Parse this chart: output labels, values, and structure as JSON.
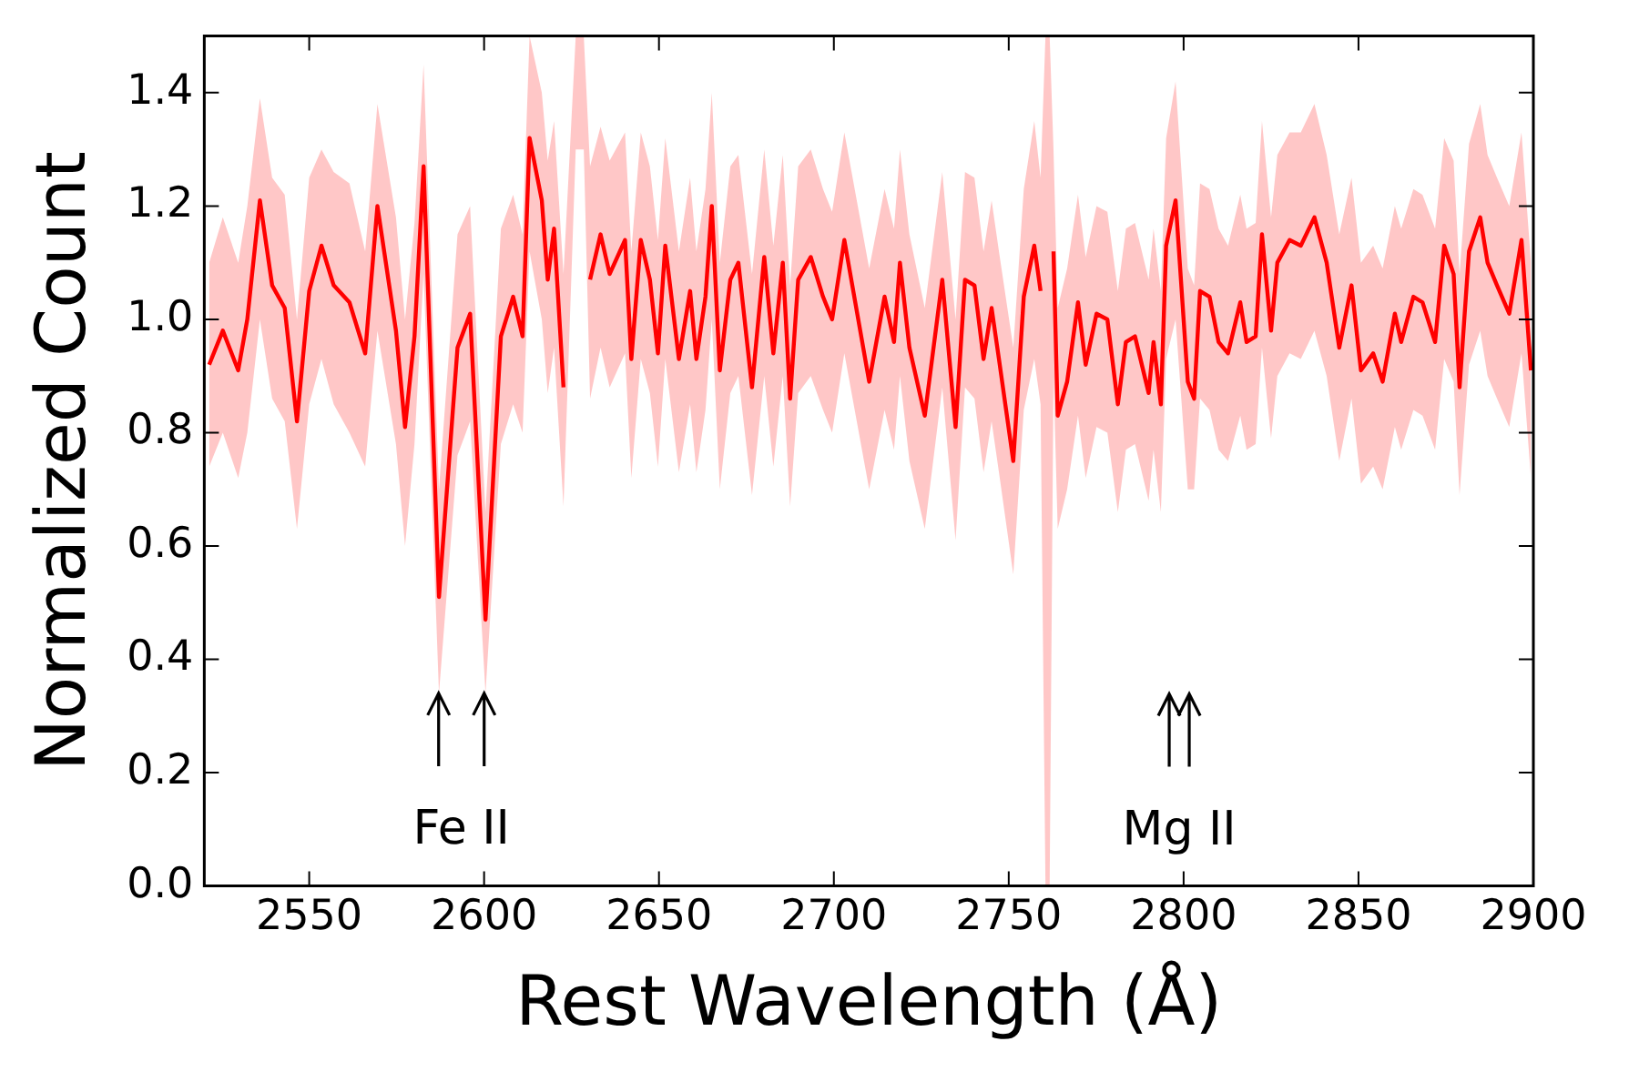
{
  "chart_data": {
    "type": "line",
    "xlabel": "Rest Wavelength (Å)",
    "ylabel": "Normalized Count",
    "xlim": [
      2520,
      2900
    ],
    "xticks": [
      2550,
      2600,
      2650,
      2700,
      2750,
      2800,
      2850,
      2900
    ],
    "ylim": [
      0,
      1.5
    ],
    "yticks": [
      {
        "value": 0,
        "label": "0.0"
      },
      0.2,
      0.4,
      0.6,
      0.8,
      {
        "value": 1,
        "label": "1.0"
      },
      1.2,
      1.4
    ],
    "grid": false,
    "marker": "none",
    "line_style": "solid",
    "annotations": [
      {
        "text": "Fe II",
        "x": 2587,
        "y": 0.34
      },
      "Mg II"
    ],
    "series": [
      {
        "color": "#ff0000",
        "x": [
          2521.4,
          2525.3,
          2529.7,
          2532.3,
          2535.9,
          2539.4,
          2543,
          2546.5,
          2550,
          2553.5,
          2557,
          2561.5,
          2566,
          2569.5,
          2574.8,
          2577.4,
          2580.1,
          2582.7,
          2587.1,
          2592.4,
          2596,
          2600.4,
          2604.8,
          2608.3,
          2611,
          2613,
          2616.5,
          2618.2,
          2620,
          2622.7,
          2626.2,
          2628.5,
          2630.3,
          2633.3,
          2635.9,
          2640.3,
          2642.1,
          2644.8,
          2647.4,
          2649.7,
          2651.8,
          2655.7,
          2658.9,
          2660.7,
          2663.3,
          2665.1,
          2667.4,
          2670.4,
          2672.7,
          2676.6,
          2680.1,
          2682.7,
          2685.4,
          2687.5,
          2689.8,
          2693.4,
          2696.9,
          2699.5,
          2703,
          2710.1,
          2714.5,
          2717.2,
          2718.9,
          2721.6,
          2726,
          2731,
          2734.8,
          2737.5,
          2740.2,
          2742.8,
          2745.1,
          2747.2,
          2751.3,
          2754.3,
          2757.3,
          2759.1,
          2760.5,
          2761.7,
          2762.8,
          2764,
          2766.7,
          2769.8,
          2772,
          2775.1,
          2778.2,
          2781.2,
          2783.5,
          2786.1,
          2790,
          2791.4,
          2793.5,
          2795,
          2797.7,
          2801.2,
          2803,
          2804.7,
          2807.4,
          2810,
          2812.7,
          2816.2,
          2818,
          2820.6,
          2822.4,
          2825,
          2826.8,
          2830.3,
          2833.5,
          2837.4,
          2840.9,
          2844.5,
          2848,
          2850.7,
          2854.2,
          2856.9,
          2860.4,
          2862.2,
          2865.7,
          2868.3,
          2871.9,
          2874.5,
          2877.2,
          2878.9,
          2881.6,
          2884.8,
          2886.9,
          2889.6,
          2893.1,
          2896.6,
          2899.3
        ],
        "values": [
          0.92,
          0.98,
          0.91,
          1.0,
          1.21,
          1.06,
          1.02,
          0.82,
          1.05,
          1.13,
          1.06,
          1.03,
          0.94,
          1.2,
          0.98,
          0.81,
          0.97,
          1.27,
          0.51,
          0.95,
          1.01,
          0.47,
          0.97,
          1.04,
          0.97,
          1.32,
          1.21,
          1.07,
          1.16,
          0.88,
          null,
          null,
          1.07,
          1.15,
          1.08,
          1.14,
          0.93,
          1.14,
          1.07,
          0.94,
          1.13,
          0.93,
          1.05,
          0.93,
          1.04,
          1.2,
          0.91,
          1.07,
          1.1,
          0.88,
          1.11,
          0.94,
          1.1,
          0.86,
          1.07,
          1.11,
          1.04,
          1.0,
          1.14,
          0.89,
          1.04,
          0.96,
          1.1,
          0.95,
          0.83,
          1.07,
          0.81,
          1.07,
          1.06,
          0.93,
          1.02,
          0.93,
          0.75,
          1.04,
          1.13,
          1.05,
          null,
          null,
          1.12,
          0.83,
          0.89,
          1.03,
          0.92,
          1.01,
          1.0,
          0.85,
          0.96,
          0.97,
          0.87,
          0.96,
          0.85,
          1.13,
          1.21,
          0.89,
          0.86,
          1.05,
          1.04,
          0.96,
          0.94,
          1.03,
          0.96,
          0.97,
          1.15,
          0.98,
          1.1,
          1.14,
          1.13,
          1.18,
          1.1,
          0.95,
          1.06,
          0.91,
          0.94,
          0.89,
          1.01,
          0.96,
          1.04,
          1.03,
          0.96,
          1.13,
          1.08,
          0.88,
          1.12,
          1.18,
          1.1,
          1.06,
          1.01,
          1.14,
          0.91
        ],
        "lower": [
          0.74,
          0.8,
          0.72,
          0.8,
          1.0,
          0.86,
          0.82,
          0.63,
          0.85,
          0.93,
          0.85,
          0.8,
          0.74,
          0.98,
          0.78,
          0.6,
          0.78,
          1.08,
          0.34,
          0.76,
          0.82,
          0.34,
          0.78,
          0.85,
          0.8,
          1.12,
          1.0,
          0.87,
          0.95,
          0.67,
          1.3,
          1.3,
          0.86,
          0.95,
          0.88,
          0.94,
          0.72,
          0.93,
          0.87,
          0.74,
          0.93,
          0.73,
          0.85,
          0.73,
          0.84,
          1.0,
          0.7,
          0.87,
          0.9,
          0.69,
          0.9,
          0.74,
          0.9,
          0.67,
          0.87,
          0.9,
          0.84,
          0.8,
          0.94,
          0.7,
          0.84,
          0.77,
          0.9,
          0.75,
          0.63,
          0.88,
          0.61,
          0.88,
          0.86,
          0.73,
          0.82,
          0.73,
          0.55,
          0.84,
          0.93,
          0.85,
          0,
          0,
          0.9,
          0.63,
          0.7,
          0.83,
          0.72,
          0.81,
          0.8,
          0.66,
          0.77,
          0.78,
          0.68,
          0.77,
          0.66,
          0.93,
          1.0,
          0.7,
          0.7,
          0.86,
          0.84,
          0.77,
          0.75,
          0.83,
          0.77,
          0.78,
          0.95,
          0.79,
          0.9,
          0.94,
          0.93,
          0.98,
          0.9,
          0.75,
          0.86,
          0.71,
          0.74,
          0.7,
          0.81,
          0.77,
          0.84,
          0.83,
          0.77,
          0.93,
          0.89,
          0.69,
          0.92,
          0.98,
          0.9,
          0.86,
          0.81,
          0.94,
          0.72
        ],
        "upper": [
          1.1,
          1.18,
          1.1,
          1.2,
          1.39,
          1.25,
          1.22,
          1.0,
          1.25,
          1.3,
          1.26,
          1.24,
          1.12,
          1.38,
          1.18,
          1.0,
          1.17,
          1.45,
          0.7,
          1.15,
          1.2,
          0.66,
          1.16,
          1.22,
          1.15,
          1.5,
          1.4,
          1.28,
          1.35,
          1.08,
          1.5,
          1.5,
          1.27,
          1.34,
          1.28,
          1.33,
          1.12,
          1.33,
          1.27,
          1.14,
          1.32,
          1.12,
          1.25,
          1.12,
          1.23,
          1.4,
          1.1,
          1.27,
          1.29,
          1.08,
          1.3,
          1.13,
          1.29,
          1.06,
          1.27,
          1.3,
          1.23,
          1.19,
          1.33,
          1.09,
          1.23,
          1.16,
          1.3,
          1.15,
          1.02,
          1.26,
          1.0,
          1.26,
          1.25,
          1.12,
          1.21,
          1.12,
          0.95,
          1.23,
          1.35,
          1.25,
          1.5,
          1.5,
          1.3,
          1.02,
          1.09,
          1.22,
          1.11,
          1.2,
          1.19,
          1.05,
          1.16,
          1.17,
          1.07,
          1.16,
          1.05,
          1.32,
          1.42,
          1.09,
          1.06,
          1.24,
          1.23,
          1.16,
          1.13,
          1.22,
          1.16,
          1.17,
          1.35,
          1.18,
          1.29,
          1.33,
          1.33,
          1.38,
          1.29,
          1.15,
          1.25,
          1.1,
          1.13,
          1.09,
          1.2,
          1.16,
          1.23,
          1.22,
          1.16,
          1.32,
          1.28,
          1.08,
          1.31,
          1.38,
          1.29,
          1.25,
          1.2,
          1.33,
          1.1
        ]
      }
    ]
  }
}
